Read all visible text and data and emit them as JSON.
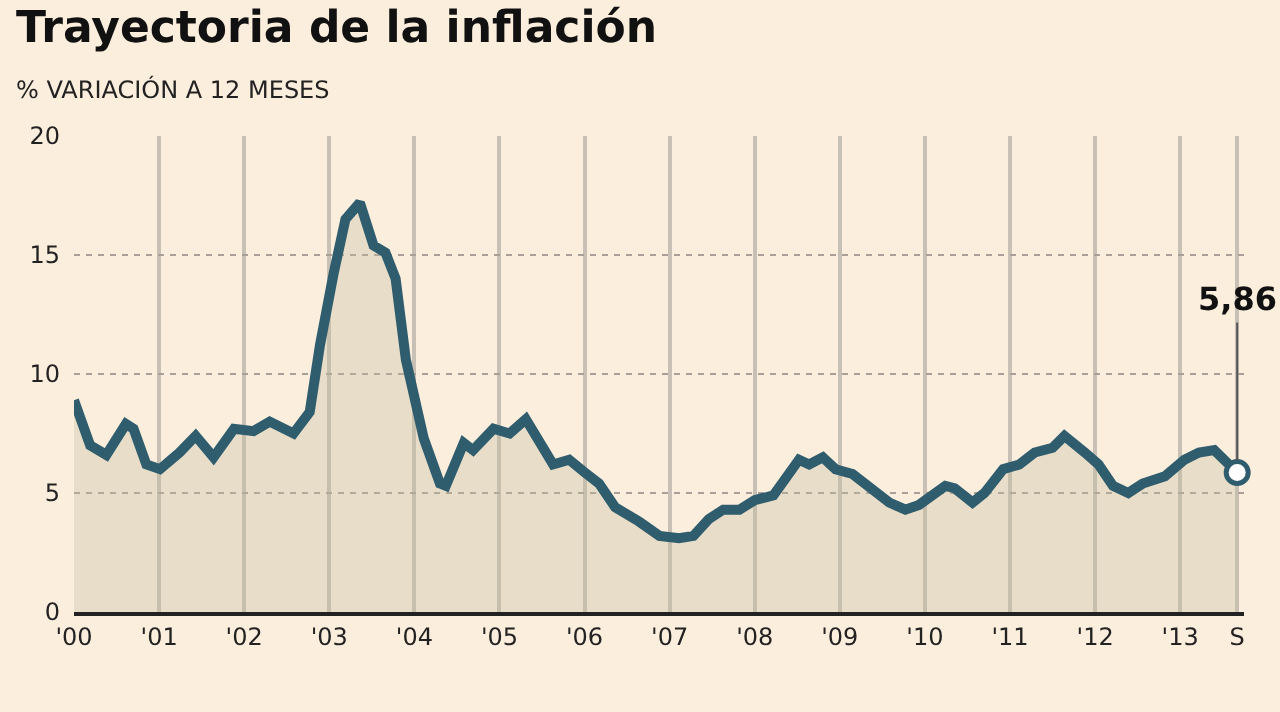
{
  "chart_data": {
    "type": "area",
    "title": "Trayectoria de la inflación",
    "subtitle": "% VARIACIÓN A 12 MESES",
    "x": [
      2000.0,
      2000.19,
      2000.38,
      2000.61,
      2000.7,
      2000.85,
      2001.01,
      2001.24,
      2001.43,
      2001.64,
      2001.88,
      2002.11,
      2002.3,
      2002.58,
      2002.77,
      2002.89,
      2003.05,
      2003.19,
      2003.36,
      2003.52,
      2003.66,
      2003.78,
      2003.9,
      2004.11,
      2004.3,
      2004.37,
      2004.58,
      2004.69,
      2004.93,
      2005.12,
      2005.31,
      2005.63,
      2005.82,
      2005.99,
      2006.17,
      2006.36,
      2006.64,
      2006.88,
      2007.11,
      2007.28,
      2007.46,
      2007.63,
      2007.82,
      2008.0,
      2008.22,
      2008.52,
      2008.64,
      2008.8,
      2008.95,
      2009.15,
      2009.58,
      2009.77,
      2009.93,
      2010.24,
      2010.35,
      2010.56,
      2010.7,
      2010.92,
      2011.11,
      2011.29,
      2011.5,
      2011.64,
      2011.88,
      2012.04,
      2012.21,
      2012.39,
      2012.56,
      2012.82,
      2013.05,
      2013.22,
      2013.4,
      2013.67
    ],
    "series": [
      {
        "color": "#2f5d6e",
        "values": [
          8.9,
          7.0,
          6.6,
          7.9,
          7.7,
          6.2,
          6.0,
          6.7,
          7.4,
          6.5,
          7.7,
          7.6,
          8.0,
          7.5,
          8.4,
          11.2,
          14.2,
          16.5,
          17.2,
          15.4,
          15.1,
          14.0,
          10.6,
          7.3,
          5.4,
          5.3,
          7.1,
          6.8,
          7.7,
          7.5,
          8.1,
          6.2,
          6.4,
          5.9,
          5.4,
          4.4,
          3.8,
          3.2,
          3.1,
          3.2,
          3.9,
          4.3,
          4.3,
          4.7,
          4.9,
          6.4,
          6.2,
          6.5,
          6.0,
          5.8,
          4.6,
          4.3,
          4.5,
          5.3,
          5.2,
          4.6,
          5.0,
          6.0,
          6.2,
          6.7,
          6.9,
          7.4,
          6.7,
          6.2,
          5.3,
          5.0,
          5.4,
          5.7,
          6.4,
          6.7,
          6.8,
          5.86
        ]
      }
    ],
    "xlim": [
      2000,
      2013.75
    ],
    "xticks": [
      {
        "value": 2000,
        "label": "'00"
      },
      {
        "value": 2001,
        "label": "'01"
      },
      {
        "value": 2002,
        "label": "'02"
      },
      {
        "value": 2003,
        "label": "'03"
      },
      {
        "value": 2004,
        "label": "'04"
      },
      {
        "value": 2005,
        "label": "'05"
      },
      {
        "value": 2006,
        "label": "'06"
      },
      {
        "value": 2007,
        "label": "'07"
      },
      {
        "value": 2008,
        "label": "'08"
      },
      {
        "value": 2009,
        "label": "'09"
      },
      {
        "value": 2010,
        "label": "'10"
      },
      {
        "value": 2011,
        "label": "'11"
      },
      {
        "value": 2012,
        "label": "'12"
      },
      {
        "value": 2013,
        "label": "'13"
      },
      {
        "value": 2013.67,
        "label": "S"
      }
    ],
    "ylim": [
      0,
      20
    ],
    "yticks": [
      0,
      5,
      10,
      15,
      20
    ],
    "grid": true,
    "line_style": "solid",
    "annotations": [
      {
        "text": "5,86",
        "x": 2013.67,
        "y": 5.86
      }
    ]
  }
}
